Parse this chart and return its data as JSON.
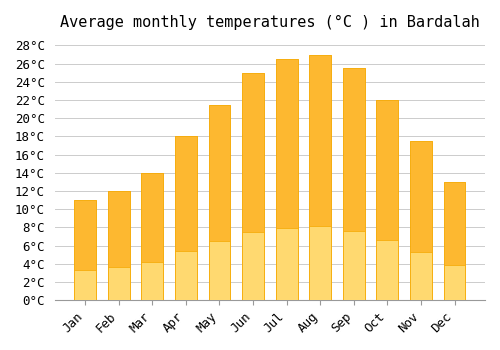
{
  "title": "Average monthly temperatures (°C ) in Bardalah",
  "months": [
    "Jan",
    "Feb",
    "Mar",
    "Apr",
    "May",
    "Jun",
    "Jul",
    "Aug",
    "Sep",
    "Oct",
    "Nov",
    "Dec"
  ],
  "values": [
    11,
    12,
    14,
    18,
    21.5,
    25,
    26.5,
    27,
    25.5,
    22,
    17.5,
    13
  ],
  "bar_color": "#FDB830",
  "bar_edge_color": "#F5A800",
  "ylim": [
    0,
    28
  ],
  "ytick_step": 2,
  "background_color": "#ffffff",
  "grid_color": "#cccccc",
  "title_fontsize": 11,
  "tick_fontsize": 9
}
